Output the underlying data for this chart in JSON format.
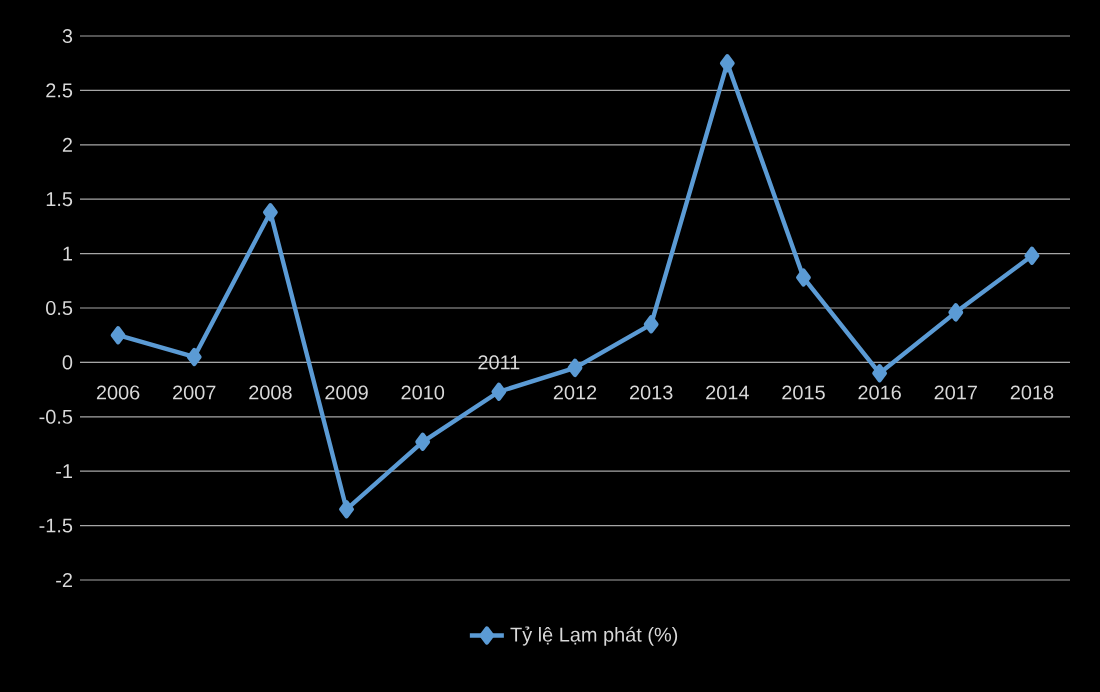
{
  "chart_data": {
    "type": "line",
    "categories": [
      "2006",
      "2007",
      "2008",
      "2009",
      "2010",
      "2011",
      "2012",
      "2013",
      "2014",
      "2015",
      "2016",
      "2017",
      "2018"
    ],
    "series": [
      {
        "name": "Tỷ lệ Lạm phát (%)",
        "color": "#5b9bd5",
        "values": [
          0.25,
          0.05,
          1.38,
          -1.35,
          -0.73,
          -0.27,
          -0.05,
          0.35,
          2.75,
          0.78,
          -0.1,
          0.46,
          0.98
        ]
      }
    ],
    "ylim": [
      -2,
      3
    ],
    "yticks": [
      -2,
      -1.5,
      -1,
      -0.5,
      0,
      0.5,
      1,
      1.5,
      2,
      2.5,
      3
    ],
    "grid": "y",
    "legend": "bottom",
    "marker": "diamond",
    "line_style": "solid"
  }
}
